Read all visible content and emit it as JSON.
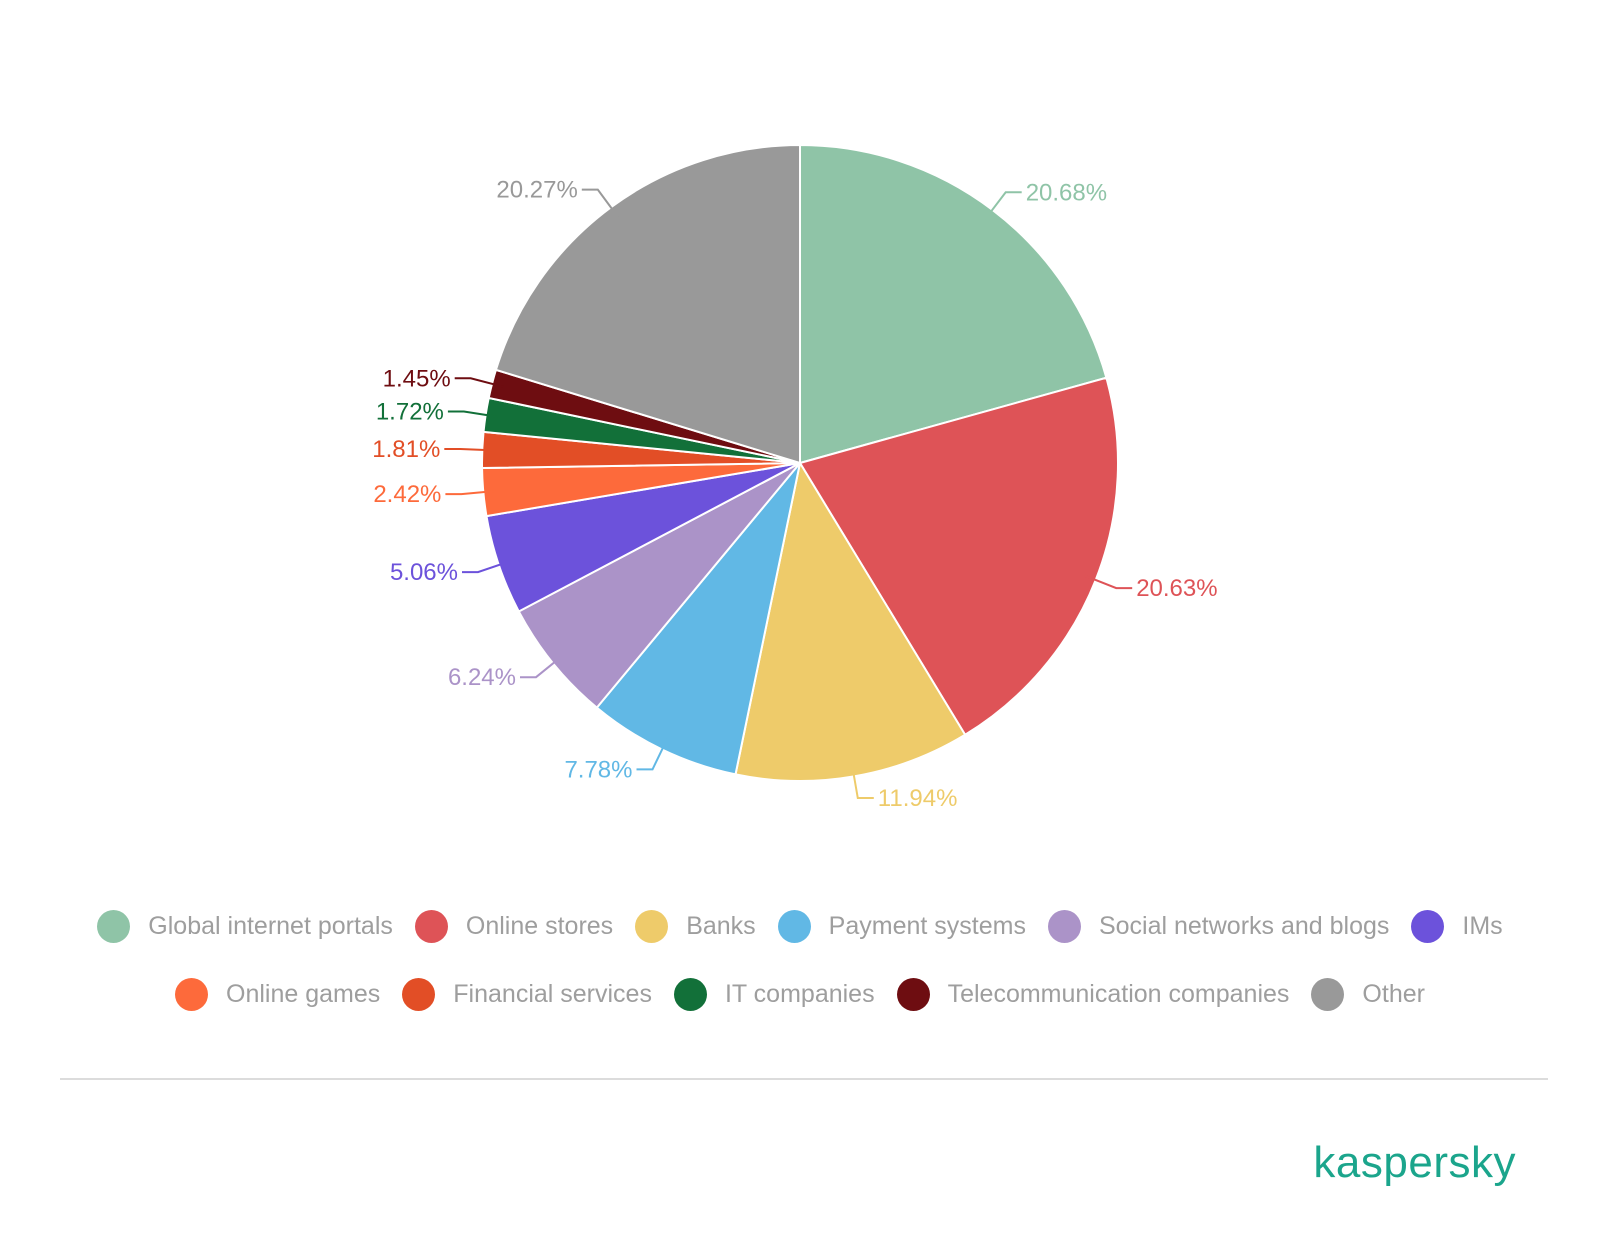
{
  "chart_data": {
    "type": "pie",
    "categories": [
      "Global internet portals",
      "Online stores",
      "Banks",
      "Payment systems",
      "Social networks and blogs",
      "IMs",
      "Online games",
      "Financial services",
      "IT companies",
      "Telecommunication companies",
      "Other"
    ],
    "values": [
      20.68,
      20.63,
      11.94,
      7.78,
      6.24,
      5.06,
      2.42,
      1.81,
      1.72,
      1.45,
      20.27
    ],
    "labels": [
      "20.68%",
      "20.63%",
      "11.94%",
      "7.78%",
      "6.24%",
      "5.06%",
      "2.42%",
      "1.81%",
      "1.72%",
      "1.45%",
      "20.27%"
    ],
    "colors": [
      "#8fc4a7",
      "#de5357",
      "#eecb6a",
      "#61b8e5",
      "#ab93c8",
      "#6c52db",
      "#fd6a3b",
      "#e24e26",
      "#127039",
      "#6e0d11",
      "#999999"
    ],
    "legend_placement": "bottom",
    "start_angle": "12 o'clock, clockwise"
  },
  "legend": {
    "row1": [
      {
        "label": "Global internet portals",
        "color": "#8fc4a7"
      },
      {
        "label": "Online stores",
        "color": "#de5357"
      },
      {
        "label": "Banks",
        "color": "#eecb6a"
      },
      {
        "label": "Payment systems",
        "color": "#61b8e5"
      },
      {
        "label": "Social networks and blogs",
        "color": "#ab93c8"
      },
      {
        "label": "IMs",
        "color": "#6c52db"
      }
    ],
    "row2": [
      {
        "label": "Online games",
        "color": "#fd6a3b"
      },
      {
        "label": "Financial services",
        "color": "#e24e26"
      },
      {
        "label": "IT companies",
        "color": "#127039"
      },
      {
        "label": "Telecommunication companies",
        "color": "#6e0d11"
      },
      {
        "label": "Other",
        "color": "#999999"
      }
    ]
  },
  "logo": {
    "text": "kaspersky",
    "color": "#1ba58c"
  }
}
